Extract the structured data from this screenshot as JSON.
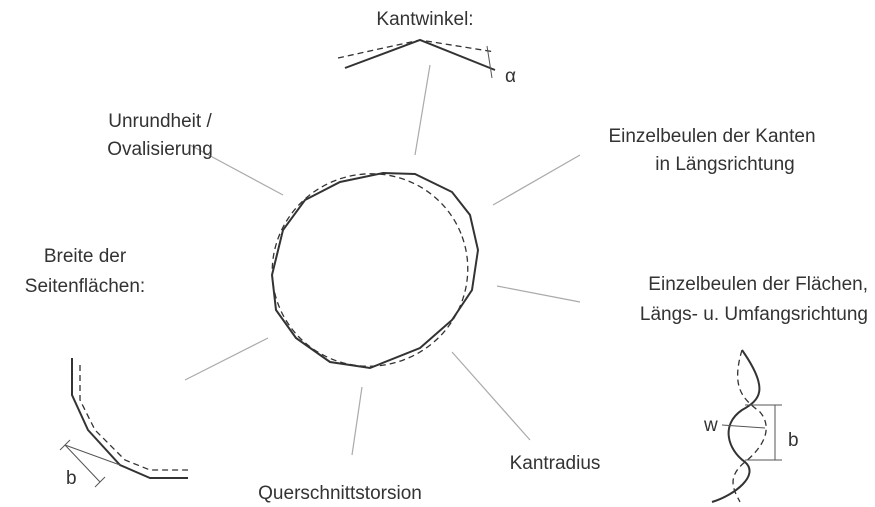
{
  "labels": [
    {
      "lines": [
        "Kantwinkel:"
      ]
    },
    {
      "lines": [
        "Unrundheit /",
        "Ovalisierung"
      ]
    },
    {
      "lines": [
        "Einzelbeulen der Kanten",
        "in Längsrichtung"
      ]
    },
    {
      "lines": [
        "Einzelbeulen der Flächen,",
        "Längs- u. Umfangsrichtung"
      ]
    },
    {
      "lines": [
        "Breite der",
        "Seitenflächen:"
      ]
    },
    {
      "lines": [
        "Kantradius"
      ]
    },
    {
      "lines": [
        "Querschnittstorsion"
      ]
    }
  ],
  "symbols": {
    "alpha": "α",
    "b_left": "b",
    "w": "w",
    "b_right": "b"
  }
}
